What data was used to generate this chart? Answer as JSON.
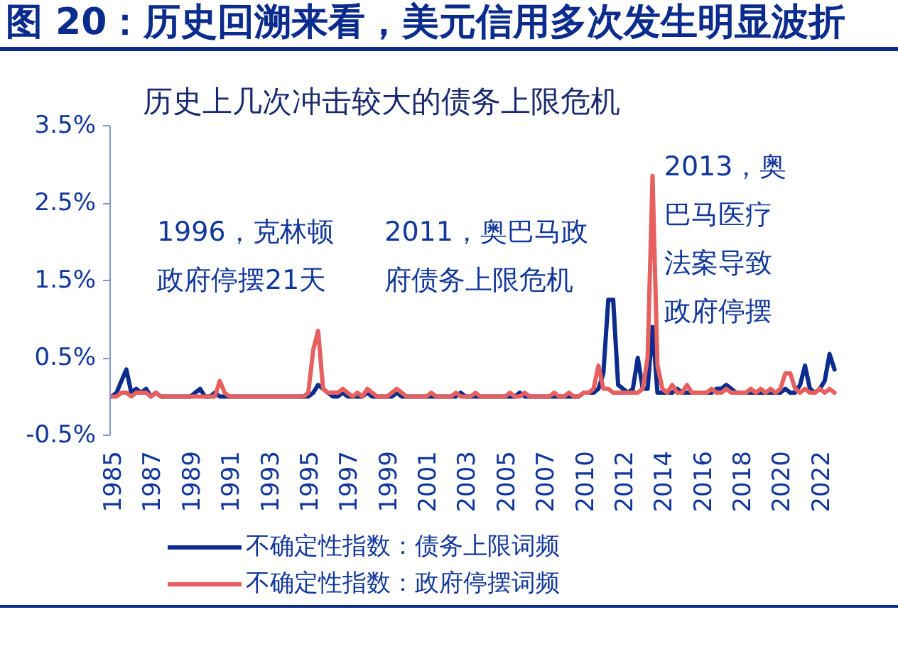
{
  "chart_data": {
    "type": "line",
    "title": "图 20：历史回溯来看，美元信用多次发生明显波折",
    "subtitle": "历史上几次冲击较大的债务上限危机",
    "categories": [
      "1985",
      null,
      null,
      null,
      null,
      null,
      null,
      null,
      "1987",
      null,
      null,
      null,
      null,
      null,
      null,
      null,
      "1989",
      null,
      null,
      null,
      null,
      null,
      null,
      null,
      "1991",
      null,
      null,
      null,
      null,
      null,
      null,
      null,
      "1993",
      null,
      null,
      null,
      null,
      null,
      null,
      null,
      "1995",
      null,
      null,
      null,
      null,
      null,
      null,
      null,
      "1997",
      null,
      null,
      null,
      null,
      null,
      null,
      null,
      "1999",
      null,
      null,
      null,
      null,
      null,
      null,
      null,
      "2001",
      null,
      null,
      null,
      null,
      null,
      null,
      null,
      "2003",
      null,
      null,
      null,
      null,
      null,
      null,
      null,
      "2005",
      null,
      null,
      null,
      null,
      null,
      null,
      null,
      "2007",
      null,
      null,
      null,
      null,
      null,
      null,
      null,
      "2010",
      null,
      null,
      null,
      null,
      null,
      null,
      null,
      "2012",
      null,
      null,
      null,
      null,
      null,
      null,
      null,
      "2014",
      null,
      null,
      null,
      null,
      null,
      null,
      null,
      "2016",
      null,
      null,
      null,
      null,
      null,
      null,
      null,
      "2018",
      null,
      null,
      null,
      null,
      null,
      null,
      null,
      "2020",
      null,
      null,
      null,
      null,
      null,
      null,
      null,
      "2022",
      null,
      null,
      null
    ],
    "series": [
      {
        "name": "不确定性指数：债务上限词频",
        "color": "#0b2c8c",
        "values": [
          0,
          0.05,
          0.2,
          0.35,
          0.05,
          0.1,
          0.05,
          0.1,
          0,
          0.05,
          0,
          0,
          0,
          0,
          0,
          0,
          0,
          0.05,
          0.1,
          0,
          0,
          0.05,
          0,
          0,
          0,
          0,
          0,
          0,
          0,
          0,
          0,
          0,
          0,
          0,
          0,
          0,
          0,
          0,
          0,
          0,
          0,
          0.05,
          0.15,
          0.1,
          0.05,
          0,
          0,
          0.05,
          0,
          0,
          0,
          0,
          0.05,
          0,
          0,
          0,
          0,
          0,
          0.05,
          0,
          0,
          0,
          0,
          0,
          0,
          0,
          0,
          0,
          0,
          0,
          0,
          0.05,
          0,
          0,
          0,
          0,
          0,
          0,
          0,
          0,
          0,
          0,
          0,
          0.05,
          0,
          0,
          0,
          0,
          0,
          0,
          0,
          0,
          0,
          0,
          0,
          0,
          0.05,
          0.05,
          0.05,
          0.1,
          0.3,
          1.25,
          1.25,
          0.15,
          0.1,
          0.05,
          0.1,
          0.5,
          0.1,
          0.1,
          0.9,
          0.05,
          0.05,
          0.05,
          0.05,
          0.1,
          0.05,
          0.05,
          0.05,
          0.05,
          0.05,
          0.05,
          0.05,
          0.1,
          0.1,
          0.15,
          0.1,
          0.05,
          0.05,
          0.05,
          0.05,
          0.05,
          0.05,
          0.05,
          0.05,
          0.05,
          0.05,
          0.1,
          0.05,
          0.05,
          0.15,
          0.4,
          0.1,
          0.05,
          0.1,
          0.2,
          0.55,
          0.35
        ]
      },
      {
        "name": "不确定性指数：政府停摆词频",
        "color": "#e5605e",
        "values": [
          0,
          0,
          0.05,
          0.05,
          0,
          0.05,
          0.05,
          0.05,
          0,
          0.05,
          0,
          0,
          0,
          0,
          0,
          0,
          0,
          0,
          0,
          0,
          0,
          0,
          0.2,
          0.05,
          0,
          0,
          0,
          0,
          0,
          0,
          0,
          0,
          0,
          0,
          0,
          0,
          0,
          0,
          0,
          0,
          0.05,
          0.6,
          0.85,
          0.1,
          0.05,
          0.05,
          0.05,
          0.1,
          0.05,
          0,
          0.05,
          0,
          0.1,
          0.05,
          0,
          0,
          0,
          0.05,
          0.1,
          0.05,
          0,
          0,
          0,
          0,
          0,
          0.05,
          0,
          0,
          0,
          0,
          0.05,
          0,
          0,
          0,
          0.05,
          0,
          0,
          0,
          0,
          0,
          0,
          0.05,
          0,
          0,
          0.05,
          0,
          0,
          0,
          0,
          0,
          0.05,
          0,
          0,
          0.05,
          0,
          0,
          0.05,
          0.05,
          0.1,
          0.4,
          0.1,
          0.1,
          0.05,
          0.05,
          0.05,
          0.05,
          0.05,
          0.05,
          0.1,
          0.5,
          2.85,
          0.4,
          0.1,
          0.05,
          0.15,
          0.05,
          0.05,
          0.15,
          0.05,
          0.05,
          0.05,
          0.05,
          0.1,
          0.05,
          0.05,
          0.1,
          0.05,
          0.05,
          0.05,
          0.05,
          0.1,
          0.05,
          0.1,
          0.05,
          0.1,
          0.05,
          0.1,
          0.3,
          0.3,
          0.1,
          0.05,
          0.1,
          0.05,
          0.05,
          0.1,
          0.05,
          0.1,
          0.05
        ]
      }
    ],
    "ylim": [
      -0.5,
      3.5
    ],
    "yticks": [
      {
        "value": -0.5,
        "label": "-0.5%"
      },
      {
        "value": 0.5,
        "label": "0.5%"
      },
      {
        "value": 1.5,
        "label": "1.5%"
      },
      {
        "value": 2.5,
        "label": "2.5%"
      },
      {
        "value": 3.5,
        "label": "3.5%"
      }
    ],
    "annotations": [
      "1996，克林顿政府停摆21天",
      "2011，奥巴马政府债务上限危机",
      "2013，奥巴马医疗法案导致政府停摆"
    ],
    "legend": "bottom",
    "line_style": "solid"
  }
}
